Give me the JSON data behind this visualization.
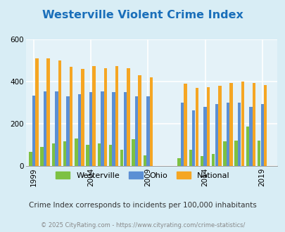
{
  "title": "Westerville Violent Crime Index",
  "title_color": "#1a6fba",
  "subtitle": "Crime Index corresponds to incidents per 100,000 inhabitants",
  "footer": "© 2025 CityRating.com - https://www.cityrating.com/crime-statistics/",
  "years": [
    1999,
    2000,
    2001,
    2002,
    2003,
    2004,
    2005,
    2006,
    2007,
    2008,
    2009,
    2012,
    2013,
    2014,
    2015,
    2016,
    2017,
    2018,
    2019
  ],
  "westerville": [
    65,
    90,
    105,
    115,
    130,
    100,
    105,
    100,
    75,
    125,
    50,
    35,
    75,
    45,
    55,
    115,
    120,
    185,
    120
  ],
  "ohio": [
    335,
    355,
    355,
    330,
    340,
    350,
    355,
    350,
    350,
    330,
    330,
    300,
    265,
    280,
    295,
    300,
    300,
    280,
    295
  ],
  "national": [
    510,
    510,
    500,
    470,
    460,
    475,
    465,
    475,
    465,
    430,
    420,
    390,
    370,
    375,
    380,
    395,
    400,
    395,
    385
  ],
  "bar_width": 0.28,
  "ylim": [
    0,
    600
  ],
  "yticks": [
    0,
    200,
    400,
    600
  ],
  "xticks": [
    1999,
    2004,
    2009,
    2014,
    2019
  ],
  "color_westerville": "#7dc142",
  "color_ohio": "#5b8fd4",
  "color_national": "#f5a623",
  "bg_color": "#d8edf5",
  "plot_bg": "#e4f2f8",
  "grid_color": "#ffffff",
  "tick_fontsize": 7.5,
  "title_fontsize": 11.5
}
